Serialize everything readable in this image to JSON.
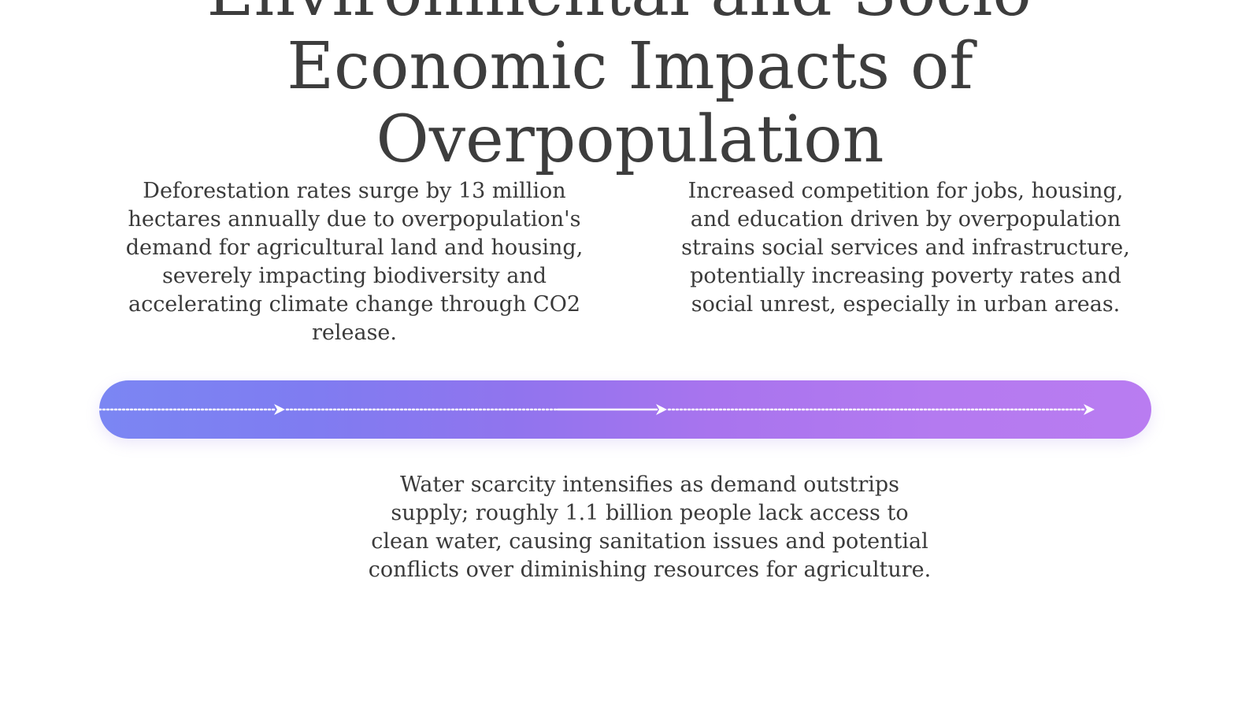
{
  "title": {
    "line1": "Environmental and Socio-",
    "line2": "Economic Impacts of",
    "line3": "Overpopulation"
  },
  "blocks": {
    "left": "Deforestation rates surge by 13 million hectares annually due to overpopulation's demand for agricultural land and housing, severely impacting biodiversity and accelerating climate change through CO2 release.",
    "right": "Increased competition for jobs, housing, and education driven by overpopulation strains social services and infrastructure, potentially increasing poverty rates and social unrest, especially in urban areas.",
    "bottom": "Water scarcity intensifies as demand outstrips supply; roughly 1.1 billion people lack access to clean water, causing sanitation issues and potential conflicts over diminishing resources for agriculture."
  },
  "colors": {
    "bar_start": "#7b86f3",
    "bar_end": "#b97cf1",
    "text": "#3a3a3a",
    "arrow": "#ffffff"
  },
  "icons": {
    "arrow_1": "arrow-right-icon",
    "arrow_2": "arrow-right-icon",
    "arrow_3": "arrow-right-icon"
  }
}
